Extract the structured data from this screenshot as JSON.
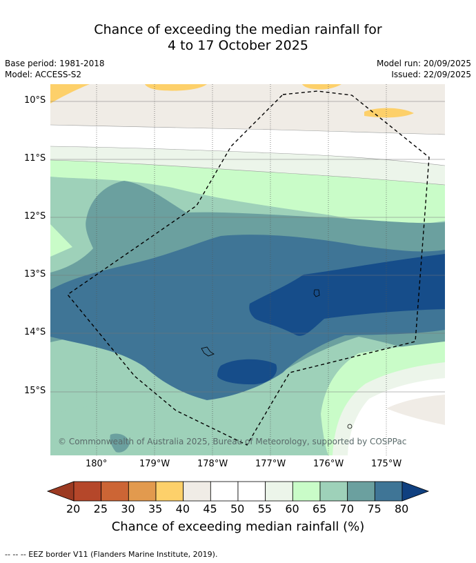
{
  "title": {
    "line1": "Chance of exceeding the median rainfall for",
    "line2": "4 to 17 October 2025"
  },
  "meta": {
    "base_period": "Base period: 1981-2018",
    "model": "Model: ACCESS-S2",
    "model_run": "Model run: 20/09/2025",
    "issued": "Issued: 22/09/2025"
  },
  "axes": {
    "lat_labels": [
      "10°S",
      "11°S",
      "12°S",
      "13°S",
      "14°S",
      "15°S"
    ],
    "lon_labels": [
      "180°",
      "179°W",
      "178°W",
      "177°W",
      "176°W",
      "175°W"
    ]
  },
  "copyright": "© Commonwealth of Australia 2025, Bureau of Meteorology, supported by COSPPac",
  "colorbar": {
    "ticks": [
      "20",
      "25",
      "30",
      "35",
      "40",
      "45",
      "50",
      "55",
      "60",
      "65",
      "70",
      "75",
      "80"
    ],
    "colors": [
      "#b5472a",
      "#cc6535",
      "#e29a4e",
      "#fdd06a",
      "#f0ece6",
      "#ffffff",
      "#ffffff",
      "#ecf5ea",
      "#c9fcc8",
      "#9ed1b9",
      "#6ba09f",
      "#3f7596",
      "#164d8a"
    ],
    "under_color": "#9c3a22",
    "over_color": "#104080",
    "label": "Chance of exceeding median rainfall (%)"
  },
  "footer": "--  --  -- EEZ border V11 (Flanders Marine Institute, 2019)."
}
